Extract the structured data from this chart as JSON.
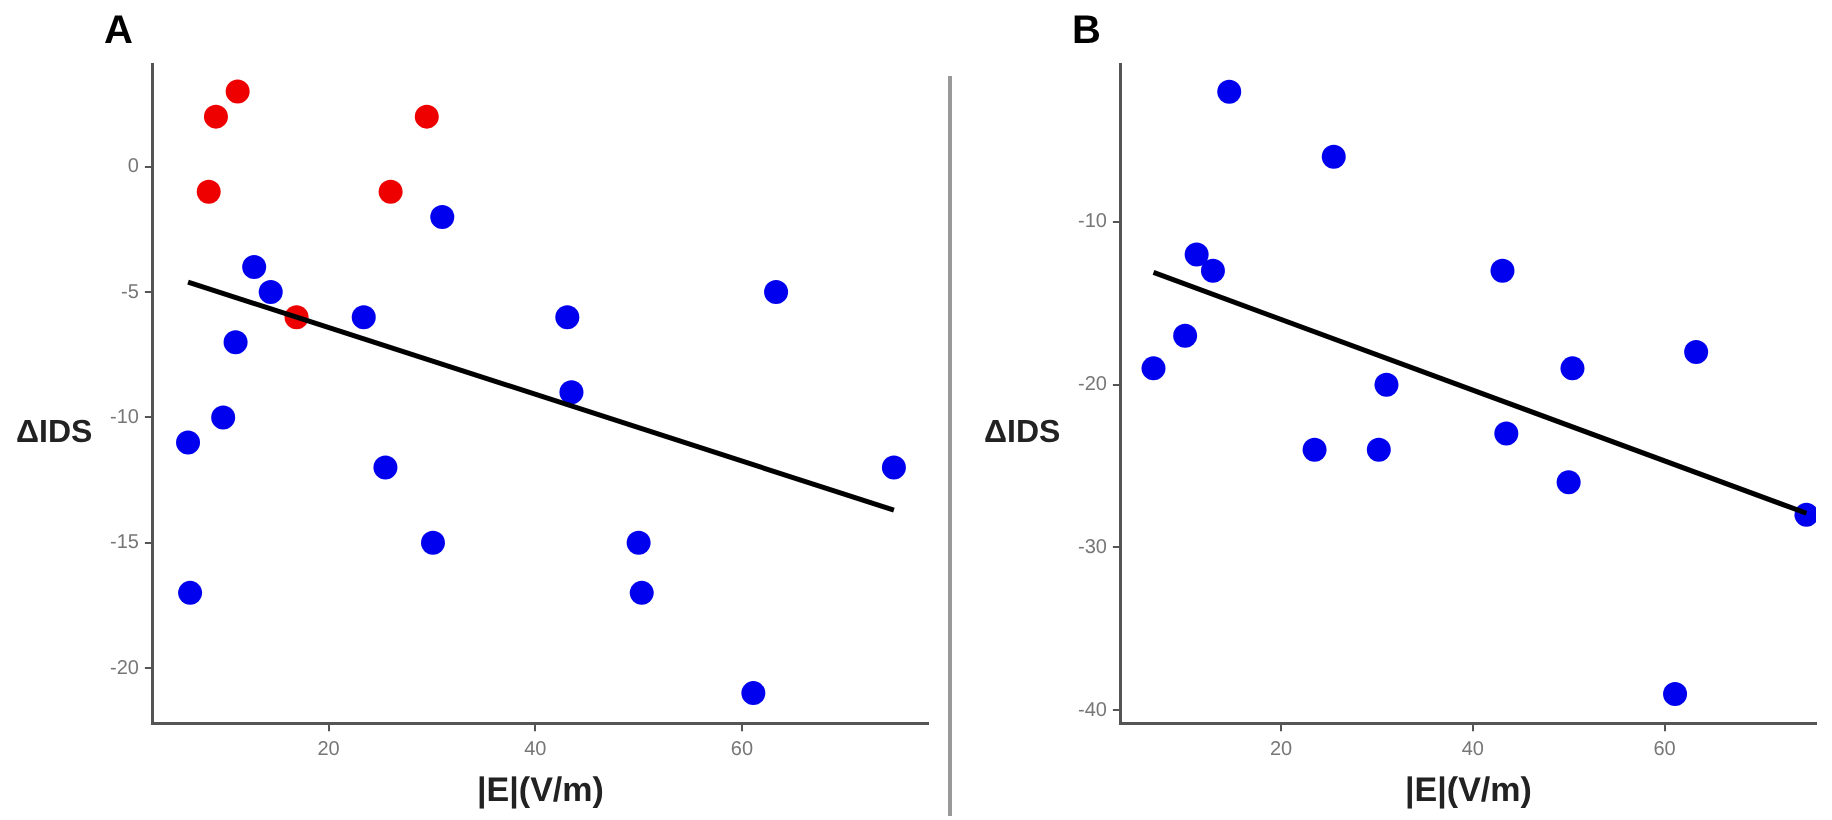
{
  "chart_data": [
    {
      "type": "scatter",
      "title": "A",
      "xlabel": "|E|(V/m)",
      "ylabel": "ΔIDS",
      "xlim": [
        3,
        78
      ],
      "ylim": [
        -22.2,
        4.1
      ],
      "xticks": [
        20,
        40,
        60
      ],
      "yticks": [
        -20,
        -15,
        -10,
        -5,
        0
      ],
      "grid": false,
      "marker": "circle",
      "series": [
        {
          "color": "#0000ee",
          "x": [
            31.0,
            12.8,
            14.4,
            11.0,
            9.8,
            6.4,
            6.6,
            23.4,
            25.5,
            30.1,
            43.1,
            43.5,
            50.0,
            50.3,
            61.1,
            63.3,
            74.7
          ],
          "values": [
            -2,
            -4,
            -5,
            -7,
            -10,
            -11,
            -17,
            -6,
            -12,
            -15,
            -6,
            -9,
            -15,
            -17,
            -21,
            -5,
            -12
          ]
        },
        {
          "color": "#ee0000",
          "x": [
            8.4,
            9.1,
            11.2,
            29.5,
            26.0,
            16.9
          ],
          "values": [
            -1,
            2,
            3,
            2,
            -1,
            -6
          ]
        },
        {
          "type": "line",
          "marker": "none",
          "color": "#000000",
          "x": [
            6.4,
            74.7
          ],
          "values": [
            -4.6,
            -13.7
          ]
        }
      ]
    },
    {
      "type": "scatter",
      "title": "B",
      "xlabel": "|E|(V/m)",
      "ylabel": "ΔIDS",
      "xlim": [
        3.3,
        75.8
      ],
      "ylim": [
        -40.8,
        -0.3
      ],
      "xticks": [
        20,
        40,
        60
      ],
      "yticks": [
        -40,
        -30,
        -20,
        -10
      ],
      "grid": false,
      "marker": "circle",
      "series": [
        {
          "color": "#0000ee",
          "x": [
            14.6,
            25.5,
            11.2,
            12.9,
            10.0,
            6.7,
            23.5,
            30.2,
            31.0,
            43.1,
            43.5,
            50.4,
            50.0,
            63.3,
            61.1,
            74.8
          ],
          "values": [
            -2,
            -6,
            -12,
            -13,
            -17,
            -19,
            -24,
            -24,
            -20,
            -13,
            -23,
            -19,
            -26,
            -18,
            -39,
            -28
          ]
        },
        {
          "type": "line",
          "marker": "none",
          "color": "#000000",
          "x": [
            6.7,
            74.8
          ],
          "values": [
            -13.1,
            -27.9
          ]
        }
      ]
    }
  ]
}
